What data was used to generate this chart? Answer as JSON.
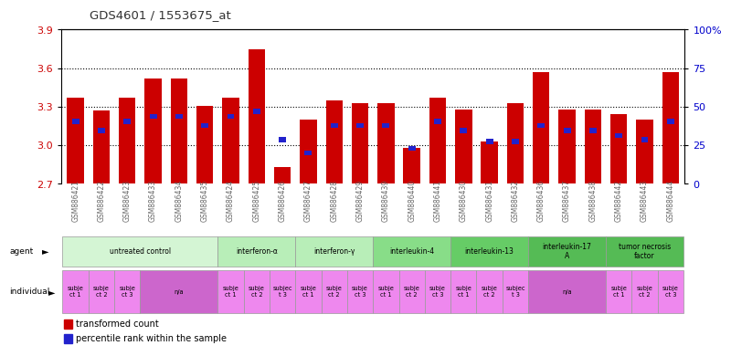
{
  "title": "GDS4601 / 1553675_at",
  "ylim_left": [
    2.7,
    3.9
  ],
  "ylim_right": [
    0,
    100
  ],
  "yticks_left": [
    2.7,
    3.0,
    3.3,
    3.6,
    3.9
  ],
  "yticks_right": [
    0,
    25,
    50,
    75,
    100
  ],
  "ytick_labels_right": [
    "0",
    "25",
    "50",
    "75",
    "100%"
  ],
  "bar_color": "#cc0000",
  "blue_color": "#2222cc",
  "bar_width": 0.65,
  "samples": [
    "GSM886421",
    "GSM886422",
    "GSM886423",
    "GSM886433",
    "GSM886434",
    "GSM886435",
    "GSM886424",
    "GSM886425",
    "GSM886426",
    "GSM886427",
    "GSM886428",
    "GSM886429",
    "GSM886439",
    "GSM886440",
    "GSM886441",
    "GSM886430",
    "GSM886431",
    "GSM886432",
    "GSM886436",
    "GSM886437",
    "GSM886438",
    "GSM886442",
    "GSM886443",
    "GSM886444"
  ],
  "bar_heights": [
    3.37,
    3.27,
    3.37,
    3.52,
    3.52,
    3.31,
    3.37,
    3.75,
    2.83,
    3.2,
    3.35,
    3.33,
    3.33,
    2.98,
    3.37,
    3.28,
    3.03,
    3.33,
    3.57,
    3.28,
    3.28,
    3.24,
    3.2,
    3.57
  ],
  "blue_positions": [
    3.185,
    3.115,
    3.185,
    3.225,
    3.225,
    3.155,
    3.225,
    3.265,
    3.045,
    2.94,
    3.155,
    3.155,
    3.155,
    2.975,
    3.185,
    3.115,
    3.03,
    3.03,
    3.155,
    3.115,
    3.115,
    3.075,
    3.045,
    3.185
  ],
  "agent_groups": [
    {
      "label": "untreated control",
      "start": 0,
      "end": 5,
      "color": "#d4f5d4"
    },
    {
      "label": "interferon-α",
      "start": 6,
      "end": 8,
      "color": "#b8eeb8"
    },
    {
      "label": "interferon-γ",
      "start": 9,
      "end": 11,
      "color": "#b8eeb8"
    },
    {
      "label": "interleukin-4",
      "start": 12,
      "end": 14,
      "color": "#88dd88"
    },
    {
      "label": "interleukin-13",
      "start": 15,
      "end": 17,
      "color": "#66cc66"
    },
    {
      "label": "interleukin-17\nA",
      "start": 18,
      "end": 20,
      "color": "#55bb55"
    },
    {
      "label": "tumor necrosis\nfactor",
      "start": 21,
      "end": 23,
      "color": "#55bb55"
    }
  ],
  "individual_groups": [
    {
      "label": "subje\nct 1",
      "start": 0,
      "end": 0,
      "color": "#ee88ee"
    },
    {
      "label": "subje\nct 2",
      "start": 1,
      "end": 1,
      "color": "#ee88ee"
    },
    {
      "label": "subje\nct 3",
      "start": 2,
      "end": 2,
      "color": "#ee88ee"
    },
    {
      "label": "n/a",
      "start": 3,
      "end": 5,
      "color": "#cc66cc"
    },
    {
      "label": "subje\nct 1",
      "start": 6,
      "end": 6,
      "color": "#ee88ee"
    },
    {
      "label": "subje\nct 2",
      "start": 7,
      "end": 7,
      "color": "#ee88ee"
    },
    {
      "label": "subjec\nt 3",
      "start": 8,
      "end": 8,
      "color": "#ee88ee"
    },
    {
      "label": "subje\nct 1",
      "start": 9,
      "end": 9,
      "color": "#ee88ee"
    },
    {
      "label": "subje\nct 2",
      "start": 10,
      "end": 10,
      "color": "#ee88ee"
    },
    {
      "label": "subje\nct 3",
      "start": 11,
      "end": 11,
      "color": "#ee88ee"
    },
    {
      "label": "subje\nct 1",
      "start": 12,
      "end": 12,
      "color": "#ee88ee"
    },
    {
      "label": "subje\nct 2",
      "start": 13,
      "end": 13,
      "color": "#ee88ee"
    },
    {
      "label": "subje\nct 3",
      "start": 14,
      "end": 14,
      "color": "#ee88ee"
    },
    {
      "label": "subje\nct 1",
      "start": 15,
      "end": 15,
      "color": "#ee88ee"
    },
    {
      "label": "subje\nct 2",
      "start": 16,
      "end": 16,
      "color": "#ee88ee"
    },
    {
      "label": "subjec\nt 3",
      "start": 17,
      "end": 17,
      "color": "#ee88ee"
    },
    {
      "label": "n/a",
      "start": 18,
      "end": 20,
      "color": "#cc66cc"
    },
    {
      "label": "subje\nct 1",
      "start": 21,
      "end": 21,
      "color": "#ee88ee"
    },
    {
      "label": "subje\nct 2",
      "start": 22,
      "end": 22,
      "color": "#ee88ee"
    },
    {
      "label": "subje\nct 3",
      "start": 23,
      "end": 23,
      "color": "#ee88ee"
    }
  ],
  "bg_color": "#ffffff",
  "grid_color": "#000000",
  "tick_color_left": "#cc0000",
  "tick_color_right": "#0000cc",
  "sample_label_color": "#666666",
  "legend_items": [
    {
      "label": "transformed count",
      "color": "#cc0000"
    },
    {
      "label": "percentile rank within the sample",
      "color": "#2222cc"
    }
  ]
}
